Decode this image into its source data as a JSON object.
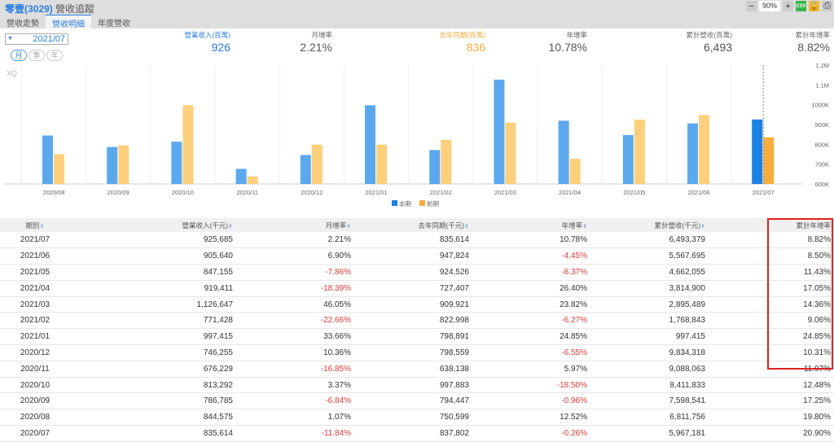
{
  "header": {
    "title_stock": "零壹(3029)",
    "title_rest": "營收追蹤",
    "zoom": "90%",
    "csv": "CSV"
  },
  "tabs": [
    {
      "label": "營收走勢"
    },
    {
      "label": "營收明細"
    },
    {
      "label": "年度營收"
    }
  ],
  "date_select": "2021/07",
  "periods": [
    "月",
    "季",
    "年"
  ],
  "summary": [
    {
      "label": "營業收入(百萬)",
      "value": "926"
    },
    {
      "label": "月增率",
      "value": "2.21%"
    },
    {
      "label": "去年同期(百萬)",
      "value": "836"
    },
    {
      "label": "年增率",
      "value": "10.78%"
    },
    {
      "label": "累計營收(百萬)",
      "value": "6,493"
    },
    {
      "label": "累計年增率",
      "value": "8.82%"
    }
  ],
  "watermark": "XQ",
  "colors": {
    "current": "#5aa9f0",
    "current_last": "#1a82e6",
    "prior": "#ffcf7a",
    "prior_last": "#f8ad3a",
    "accent": "#2a7de1",
    "negative": "#e53935"
  },
  "chart_data": {
    "type": "bar",
    "categories": [
      "2020/08",
      "2020/09",
      "2020/10",
      "2020/11",
      "2020/12",
      "2021/01",
      "2021/02",
      "2021/03",
      "2021/04",
      "2021/05",
      "2021/06",
      "2021/07"
    ],
    "series": [
      {
        "name": "本期",
        "values": [
          844575,
          786785,
          813292,
          676229,
          746255,
          997415,
          771428,
          1126647,
          919411,
          847155,
          905640,
          925685
        ]
      },
      {
        "name": "前期",
        "values": [
          750599,
          794447,
          997883,
          638138,
          798559,
          798891,
          822998,
          909921,
          727407,
          924526,
          947824,
          835614
        ]
      }
    ],
    "ylim": [
      600000,
      1200000
    ],
    "yticks": [
      "600K",
      "700K",
      "800K",
      "900K",
      "1000K",
      "1.1M",
      "1.2M"
    ],
    "legend": "bottom"
  },
  "table": {
    "headers": [
      "期別",
      "營業收入(千元)",
      "月增率",
      "去年同期(千元)",
      "年增率",
      "累計營收(千元)",
      "累計年增率"
    ],
    "rows": [
      [
        "2021/07",
        "925,685",
        "2.21%",
        "835,614",
        "10.78%",
        "6,493,379",
        "8.82%"
      ],
      [
        "2021/06",
        "905,640",
        "6.90%",
        "947,824",
        "-4.45%",
        "5,567,695",
        "8.50%"
      ],
      [
        "2021/05",
        "847,155",
        "-7.86%",
        "924,526",
        "-8.37%",
        "4,662,055",
        "11.43%"
      ],
      [
        "2021/04",
        "919,411",
        "-18.39%",
        "727,407",
        "26.40%",
        "3,814,900",
        "17.05%"
      ],
      [
        "2021/03",
        "1,126,647",
        "46.05%",
        "909,921",
        "23.82%",
        "2,895,489",
        "14.36%"
      ],
      [
        "2021/02",
        "771,428",
        "-22.66%",
        "822,998",
        "-6.27%",
        "1,768,843",
        "9.06%"
      ],
      [
        "2021/01",
        "997,415",
        "33.66%",
        "798,891",
        "24.85%",
        "997,415",
        "24.85%"
      ],
      [
        "2020/12",
        "746,255",
        "10.36%",
        "798,559",
        "-6.55%",
        "9,834,318",
        "10.31%"
      ],
      [
        "2020/11",
        "676,229",
        "-16.85%",
        "638,138",
        "5.97%",
        "9,088,063",
        "11.97%"
      ],
      [
        "2020/10",
        "813,292",
        "3.37%",
        "997,883",
        "-18.50%",
        "8,411,833",
        "12.48%"
      ],
      [
        "2020/09",
        "786,785",
        "-6.84%",
        "794,447",
        "-0.96%",
        "7,598,541",
        "17.25%"
      ],
      [
        "2020/08",
        "844,575",
        "1.07%",
        "750,599",
        "12.52%",
        "6,811,756",
        "19.80%"
      ],
      [
        "2020/07",
        "835,614",
        "-11.84%",
        "837,802",
        "-0.26%",
        "5,967,181",
        "20.90%"
      ]
    ]
  }
}
